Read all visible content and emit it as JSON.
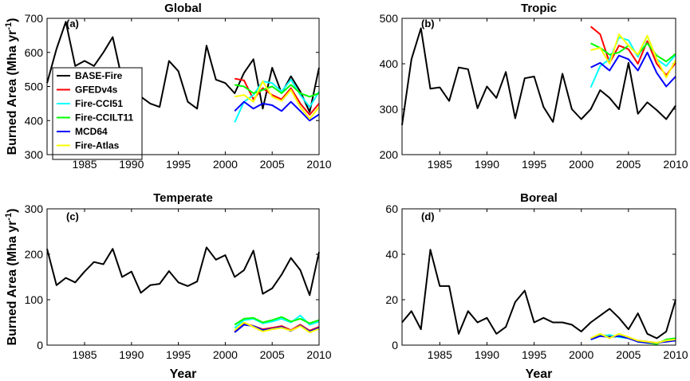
{
  "chart_data": [
    {
      "type": "line",
      "panel_label": "(a)",
      "title": "Global",
      "ylabel": "Burned Area (Mha yr-1)",
      "xlabel": "",
      "xlim": [
        1981,
        2010
      ],
      "ylim": [
        300,
        700
      ],
      "xticks": [
        1985,
        1990,
        1995,
        2000,
        2005,
        2010
      ],
      "yticks": [
        300,
        400,
        500,
        600,
        700
      ],
      "legend": "left",
      "series": [
        {
          "name": "BASE-Fire",
          "color": "#000000",
          "x": [
            1981,
            1982,
            1983,
            1984,
            1985,
            1986,
            1987,
            1988,
            1989,
            1990,
            1991,
            1992,
            1993,
            1994,
            1995,
            1996,
            1997,
            1998,
            1999,
            2000,
            2001,
            2002,
            2003,
            2004,
            2005,
            2006,
            2007,
            2008,
            2009,
            2010
          ],
          "y": [
            510,
            610,
            690,
            560,
            575,
            560,
            600,
            645,
            520,
            480,
            470,
            450,
            440,
            575,
            545,
            455,
            435,
            620,
            520,
            510,
            480,
            540,
            580,
            435,
            555,
            480,
            530,
            485,
            425,
            555
          ]
        },
        {
          "name": "GFEDv4s",
          "color": "#ff0000",
          "x": [
            2001,
            2002,
            2003,
            2004,
            2005,
            2006,
            2007,
            2008,
            2009,
            2010
          ],
          "y": [
            523,
            518,
            462,
            495,
            475,
            462,
            495,
            450,
            417,
            450
          ]
        },
        {
          "name": "Fire-CCI51",
          "color": "#00ffff",
          "x": [
            2001,
            2002,
            2003,
            2004,
            2005,
            2006,
            2007,
            2008,
            2009,
            2010
          ],
          "y": [
            395,
            455,
            475,
            515,
            510,
            485,
            520,
            475,
            440,
            485
          ]
        },
        {
          "name": "Fire-CCILT11",
          "color": "#00ff00",
          "x": [
            2001,
            2002,
            2003,
            2004,
            2005,
            2006,
            2007,
            2008,
            2009,
            2010
          ],
          "y": [
            505,
            500,
            480,
            490,
            500,
            480,
            505,
            480,
            470,
            480
          ]
        },
        {
          "name": "MCD64",
          "color": "#0000ff",
          "x": [
            2001,
            2002,
            2003,
            2004,
            2005,
            2006,
            2007,
            2008,
            2009,
            2010
          ],
          "y": [
            428,
            455,
            435,
            450,
            445,
            428,
            455,
            428,
            400,
            418
          ]
        },
        {
          "name": "Fire-Atlas",
          "color": "#ffff00",
          "x": [
            2001,
            2002,
            2003,
            2004,
            2005,
            2006,
            2007,
            2008,
            2009,
            2010
          ],
          "y": [
            470,
            475,
            455,
            515,
            470,
            458,
            490,
            440,
            405,
            440
          ]
        }
      ]
    },
    {
      "type": "line",
      "panel_label": "(b)",
      "title": "Tropic",
      "ylabel": "",
      "xlabel": "",
      "xlim": [
        1981,
        2010
      ],
      "ylim": [
        200,
        500
      ],
      "xticks": [
        1985,
        1990,
        1995,
        2000,
        2005,
        2010
      ],
      "yticks": [
        200,
        300,
        400,
        500
      ],
      "series": [
        {
          "name": "BASE-Fire",
          "color": "#000000",
          "x": [
            1981,
            1982,
            1983,
            1984,
            1985,
            1986,
            1987,
            1988,
            1989,
            1990,
            1991,
            1992,
            1993,
            1994,
            1995,
            1996,
            1997,
            1998,
            1999,
            2000,
            2001,
            2002,
            2003,
            2004,
            2005,
            2006,
            2007,
            2008,
            2009,
            2010
          ],
          "y": [
            265,
            410,
            478,
            345,
            348,
            318,
            392,
            388,
            302,
            350,
            325,
            382,
            280,
            368,
            372,
            305,
            272,
            378,
            300,
            278,
            300,
            342,
            325,
            300,
            402,
            290,
            315,
            298,
            278,
            308
          ]
        },
        {
          "name": "GFEDv4s",
          "color": "#ff0000",
          "x": [
            2001,
            2002,
            2003,
            2004,
            2005,
            2006,
            2007,
            2008,
            2009,
            2010
          ],
          "y": [
            482,
            465,
            402,
            440,
            432,
            400,
            450,
            400,
            375,
            402
          ]
        },
        {
          "name": "Fire-CCI51",
          "color": "#00ffff",
          "x": [
            2001,
            2002,
            2003,
            2004,
            2005,
            2006,
            2007,
            2008,
            2009,
            2010
          ],
          "y": [
            348,
            395,
            410,
            458,
            452,
            415,
            462,
            410,
            395,
            420
          ]
        },
        {
          "name": "Fire-CCILT11",
          "color": "#00ff00",
          "x": [
            2001,
            2002,
            2003,
            2004,
            2005,
            2006,
            2007,
            2008,
            2009,
            2010
          ],
          "y": [
            445,
            435,
            420,
            425,
            440,
            420,
            445,
            418,
            405,
            422
          ]
        },
        {
          "name": "MCD64",
          "color": "#0000ff",
          "x": [
            2001,
            2002,
            2003,
            2004,
            2005,
            2006,
            2007,
            2008,
            2009,
            2010
          ],
          "y": [
            392,
            402,
            385,
            418,
            410,
            385,
            425,
            380,
            350,
            372
          ]
        },
        {
          "name": "Fire-Atlas",
          "color": "#ffff00",
          "x": [
            2001,
            2002,
            2003,
            2004,
            2005,
            2006,
            2007,
            2008,
            2009,
            2010
          ],
          "y": [
            430,
            435,
            400,
            465,
            440,
            420,
            462,
            410,
            370,
            408
          ]
        }
      ]
    },
    {
      "type": "line",
      "panel_label": "(c)",
      "title": "Temperate",
      "ylabel": "Burned Area (Mha yr-1)",
      "xlabel": "Year",
      "xlim": [
        1981,
        2010
      ],
      "ylim": [
        0,
        300
      ],
      "xticks": [
        1985,
        1990,
        1995,
        2000,
        2005,
        2010
      ],
      "yticks": [
        0,
        100,
        200,
        300
      ],
      "series": [
        {
          "name": "BASE-Fire",
          "color": "#000000",
          "x": [
            1981,
            1982,
            1983,
            1984,
            1985,
            1986,
            1987,
            1988,
            1989,
            1990,
            1991,
            1992,
            1993,
            1994,
            1995,
            1996,
            1997,
            1998,
            1999,
            2000,
            2001,
            2002,
            2003,
            2004,
            2005,
            2006,
            2007,
            2008,
            2009,
            2010
          ],
          "y": [
            212,
            132,
            148,
            138,
            162,
            183,
            178,
            212,
            150,
            162,
            115,
            132,
            135,
            163,
            138,
            130,
            140,
            215,
            188,
            198,
            150,
            165,
            208,
            113,
            125,
            155,
            192,
            165,
            110,
            205
          ]
        },
        {
          "name": "GFEDv4s",
          "color": "#ff0000",
          "x": [
            2001,
            2002,
            2003,
            2004,
            2005,
            2006,
            2007,
            2008,
            2009,
            2010
          ],
          "y": [
            30,
            48,
            42,
            35,
            38,
            42,
            33,
            45,
            32,
            40
          ]
        },
        {
          "name": "Fire-CCI51",
          "color": "#00ffff",
          "x": [
            2001,
            2002,
            2003,
            2004,
            2005,
            2006,
            2007,
            2008,
            2009,
            2010
          ],
          "y": [
            38,
            55,
            58,
            48,
            52,
            58,
            50,
            65,
            45,
            52
          ]
        },
        {
          "name": "Fire-CCILT11",
          "color": "#00ff00",
          "x": [
            2001,
            2002,
            2003,
            2004,
            2005,
            2006,
            2007,
            2008,
            2009,
            2010
          ],
          "y": [
            45,
            58,
            60,
            50,
            55,
            62,
            52,
            58,
            48,
            55
          ]
        },
        {
          "name": "MCD64",
          "color": "#0000ff",
          "x": [
            2001,
            2002,
            2003,
            2004,
            2005,
            2006,
            2007,
            2008,
            2009,
            2010
          ],
          "y": [
            28,
            45,
            42,
            33,
            36,
            40,
            31,
            43,
            30,
            38
          ]
        },
        {
          "name": "Fire-Atlas",
          "color": "#ffff00",
          "x": [
            2001,
            2002,
            2003,
            2004,
            2005,
            2006,
            2007,
            2008,
            2009,
            2010
          ],
          "y": [
            33,
            50,
            40,
            30,
            35,
            38,
            32,
            42,
            28,
            36
          ]
        }
      ]
    },
    {
      "type": "line",
      "panel_label": "(d)",
      "title": "Boreal",
      "ylabel": "",
      "xlabel": "Year",
      "xlim": [
        1981,
        2010
      ],
      "ylim": [
        0,
        60
      ],
      "xticks": [
        1985,
        1990,
        1995,
        2000,
        2005,
        2010
      ],
      "yticks": [
        0,
        20,
        40,
        60
      ],
      "series": [
        {
          "name": "BASE-Fire",
          "color": "#000000",
          "x": [
            1981,
            1982,
            1983,
            1984,
            1985,
            1986,
            1987,
            1988,
            1989,
            1990,
            1991,
            1992,
            1993,
            1994,
            1995,
            1996,
            1997,
            1998,
            1999,
            2000,
            2001,
            2002,
            2003,
            2004,
            2005,
            2006,
            2007,
            2008,
            2009,
            2010
          ],
          "y": [
            10,
            15,
            7,
            42,
            26,
            26,
            5,
            15,
            10,
            12,
            5,
            8,
            19,
            24,
            10,
            12,
            10,
            10,
            9,
            6,
            10,
            13,
            16,
            12,
            7,
            14,
            5,
            3,
            6,
            20
          ]
        },
        {
          "name": "GFEDv4s",
          "color": "#ff0000",
          "x": [
            2001,
            2002,
            2003,
            2004,
            2005,
            2006,
            2007,
            2008,
            2009,
            2010
          ],
          "y": [
            3,
            4.5,
            4,
            4,
            3,
            2,
            1.5,
            1,
            2,
            2.5
          ]
        },
        {
          "name": "Fire-CCI51",
          "color": "#00ffff",
          "x": [
            2001,
            2002,
            2003,
            2004,
            2005,
            2006,
            2007,
            2008,
            2009,
            2010
          ],
          "y": [
            2.5,
            4,
            4.5,
            3.5,
            3,
            2,
            1,
            1,
            2,
            2
          ]
        },
        {
          "name": "Fire-CCILT11",
          "color": "#00ff00",
          "x": [
            2001,
            2002,
            2003,
            2004,
            2005,
            2006,
            2007,
            2008,
            2009,
            2010
          ],
          "y": [
            3,
            4.5,
            3.5,
            4,
            3.5,
            1.5,
            1,
            0.5,
            2.5,
            3
          ]
        },
        {
          "name": "MCD64",
          "color": "#0000ff",
          "x": [
            2001,
            2002,
            2003,
            2004,
            2005,
            2006,
            2007,
            2008,
            2009,
            2010
          ],
          "y": [
            2.5,
            4,
            3.5,
            4,
            3,
            1.5,
            1,
            1,
            1.5,
            2
          ]
        },
        {
          "name": "Fire-Atlas",
          "color": "#ffff00",
          "x": [
            2001,
            2002,
            2003,
            2004,
            2005,
            2006,
            2007,
            2008,
            2009,
            2010
          ],
          "y": [
            3,
            5,
            3,
            5,
            3.5,
            2,
            1.5,
            1,
            2,
            2.5
          ]
        }
      ]
    }
  ]
}
